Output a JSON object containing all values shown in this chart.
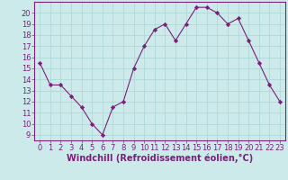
{
  "x": [
    0,
    1,
    2,
    3,
    4,
    5,
    6,
    7,
    8,
    9,
    10,
    11,
    12,
    13,
    14,
    15,
    16,
    17,
    18,
    19,
    20,
    21,
    22,
    23
  ],
  "y": [
    15.5,
    13.5,
    13.5,
    12.5,
    11.5,
    10.0,
    9.0,
    11.5,
    12.0,
    15.0,
    17.0,
    18.5,
    19.0,
    17.5,
    19.0,
    20.5,
    20.5,
    20.0,
    19.0,
    19.5,
    17.5,
    15.5,
    13.5,
    12.0
  ],
  "line_color": "#7B1F7B",
  "marker": "D",
  "marker_size": 2.2,
  "bg_color": "#cceaea",
  "grid_color": "#b0d8d8",
  "xlabel": "Windchill (Refroidissement éolien,°C)",
  "xlabel_color": "#7B1F7B",
  "ylim": [
    8.5,
    21.0
  ],
  "xlim": [
    -0.5,
    23.5
  ],
  "yticks": [
    9,
    10,
    11,
    12,
    13,
    14,
    15,
    16,
    17,
    18,
    19,
    20
  ],
  "xticks": [
    0,
    1,
    2,
    3,
    4,
    5,
    6,
    7,
    8,
    9,
    10,
    11,
    12,
    13,
    14,
    15,
    16,
    17,
    18,
    19,
    20,
    21,
    22,
    23
  ],
  "tick_label_fontsize": 6.0,
  "xlabel_fontsize": 7.0
}
